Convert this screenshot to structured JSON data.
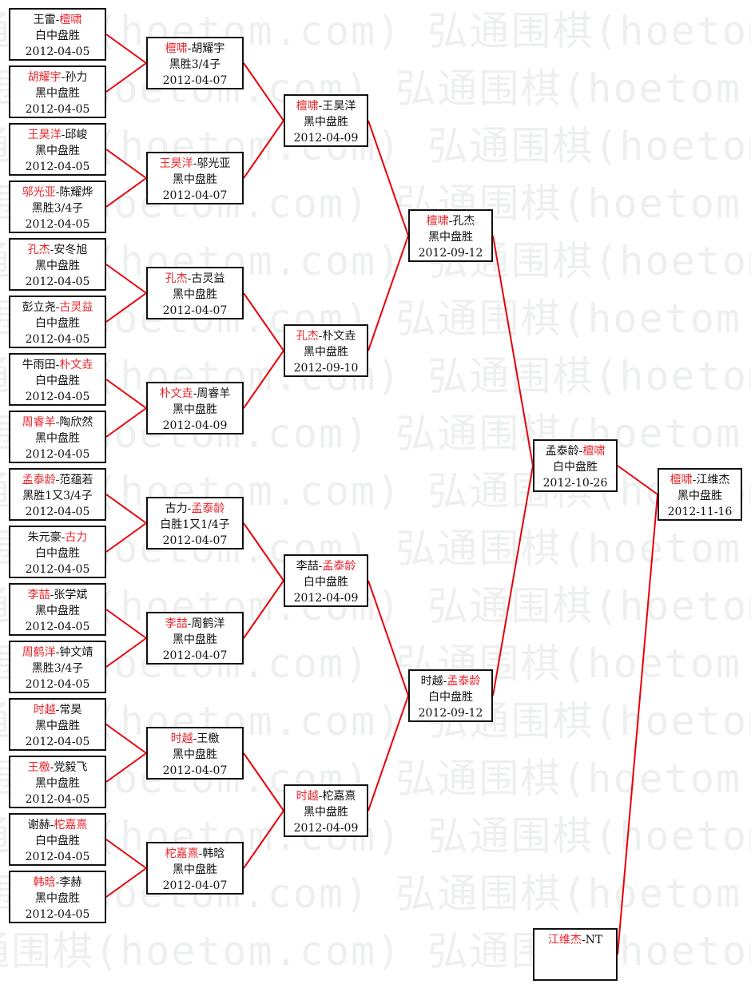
{
  "watermark": "弘通围棋(hoetom.com)",
  "colors": {
    "winner": "#e8262d",
    "line": "#e8000a",
    "border": "#111111"
  },
  "rounds": [
    [
      {
        "players": [
          "王雷",
          "檀啸"
        ],
        "winner": 1,
        "result": "白中盘胜",
        "date": "2012-04-05"
      },
      {
        "players": [
          "胡耀宇",
          "孙力"
        ],
        "winner": 0,
        "result": "黑中盘胜",
        "date": "2012-04-05"
      },
      {
        "players": [
          "王昊洋",
          "邱峻"
        ],
        "winner": 0,
        "result": "黑中盘胜",
        "date": "2012-04-05"
      },
      {
        "players": [
          "邬光亚",
          "陈耀烨"
        ],
        "winner": 0,
        "result": "黑胜3/4子",
        "date": "2012-04-05"
      },
      {
        "players": [
          "孔杰",
          "安冬旭"
        ],
        "winner": 0,
        "result": "黑中盘胜",
        "date": "2012-04-05"
      },
      {
        "players": [
          "彭立尧",
          "古灵益"
        ],
        "winner": 1,
        "result": "白中盘胜",
        "date": "2012-04-05"
      },
      {
        "players": [
          "牛雨田",
          "朴文垚"
        ],
        "winner": 1,
        "result": "白中盘胜",
        "date": "2012-04-05"
      },
      {
        "players": [
          "周睿羊",
          "陶欣然"
        ],
        "winner": 0,
        "result": "黑中盘胜",
        "date": "2012-04-05"
      },
      {
        "players": [
          "孟泰龄",
          "范蕴若"
        ],
        "winner": 0,
        "result": "黑胜1又3/4子",
        "date": "2012-04-05"
      },
      {
        "players": [
          "朱元豪",
          "古力"
        ],
        "winner": 1,
        "result": "白中盘胜",
        "date": "2012-04-05"
      },
      {
        "players": [
          "李喆",
          "张学斌"
        ],
        "winner": 0,
        "result": "黑中盘胜",
        "date": "2012-04-05"
      },
      {
        "players": [
          "周鹤洋",
          "钟文靖"
        ],
        "winner": 0,
        "result": "黑胜3/4子",
        "date": "2012-04-05"
      },
      {
        "players": [
          "时越",
          "常昊"
        ],
        "winner": 0,
        "result": "黑中盘胜",
        "date": "2012-04-05"
      },
      {
        "players": [
          "王檄",
          "党毅飞"
        ],
        "winner": 0,
        "result": "黑中盘胜",
        "date": "2012-04-05"
      },
      {
        "players": [
          "谢赫",
          "柁嘉熹"
        ],
        "winner": 1,
        "result": "白中盘胜",
        "date": "2012-04-05"
      },
      {
        "players": [
          "韩晗",
          "李赫"
        ],
        "winner": 0,
        "result": "黑中盘胜",
        "date": "2012-04-05"
      }
    ],
    [
      {
        "players": [
          "檀啸",
          "胡耀宇"
        ],
        "winner": 0,
        "result": "黑胜3/4子",
        "date": "2012-04-07"
      },
      {
        "players": [
          "王昊洋",
          "邬光亚"
        ],
        "winner": 0,
        "result": "黑中盘胜",
        "date": "2012-04-07"
      },
      {
        "players": [
          "孔杰",
          "古灵益"
        ],
        "winner": 0,
        "result": "黑中盘胜",
        "date": "2012-04-07"
      },
      {
        "players": [
          "朴文垚",
          "周睿羊"
        ],
        "winner": 0,
        "result": "黑中盘胜",
        "date": "2012-04-09"
      },
      {
        "players": [
          "古力",
          "孟泰龄"
        ],
        "winner": 1,
        "result": "白胜1又1/4子",
        "date": "2012-04-07"
      },
      {
        "players": [
          "李喆",
          "周鹤洋"
        ],
        "winner": 0,
        "result": "黑中盘胜",
        "date": "2012-04-07"
      },
      {
        "players": [
          "时越",
          "王檄"
        ],
        "winner": 0,
        "result": "黑中盘胜",
        "date": "2012-04-07"
      },
      {
        "players": [
          "柁嘉熹",
          "韩晗"
        ],
        "winner": 0,
        "result": "黑中盘胜",
        "date": "2012-04-07"
      }
    ],
    [
      {
        "players": [
          "檀啸",
          "王昊洋"
        ],
        "winner": 0,
        "result": "黑中盘胜",
        "date": "2012-04-09"
      },
      {
        "players": [
          "孔杰",
          "朴文垚"
        ],
        "winner": 0,
        "result": "黑中盘胜",
        "date": "2012-09-10"
      },
      {
        "players": [
          "李喆",
          "孟泰龄"
        ],
        "winner": 1,
        "result": "白中盘胜",
        "date": "2012-04-09"
      },
      {
        "players": [
          "时越",
          "柁嘉熹"
        ],
        "winner": 0,
        "result": "黑中盘胜",
        "date": "2012-04-09"
      }
    ],
    [
      {
        "players": [
          "檀啸",
          "孔杰"
        ],
        "winner": 0,
        "result": "黑中盘胜",
        "date": "2012-09-12"
      },
      {
        "players": [
          "时越",
          "孟泰龄"
        ],
        "winner": 1,
        "result": "白中盘胜",
        "date": "2012-09-12"
      }
    ],
    [
      {
        "players": [
          "孟泰龄",
          "檀啸"
        ],
        "winner": 1,
        "result": "白中盘胜",
        "date": "2012-10-26"
      },
      {
        "players": [
          "江维杰",
          "NT"
        ],
        "winner": 0,
        "result": "",
        "date": ""
      }
    ],
    [
      {
        "players": [
          "檀啸",
          "江维杰"
        ],
        "winner": 0,
        "result": "黑中盘胜",
        "date": "2012-11-16"
      }
    ]
  ]
}
